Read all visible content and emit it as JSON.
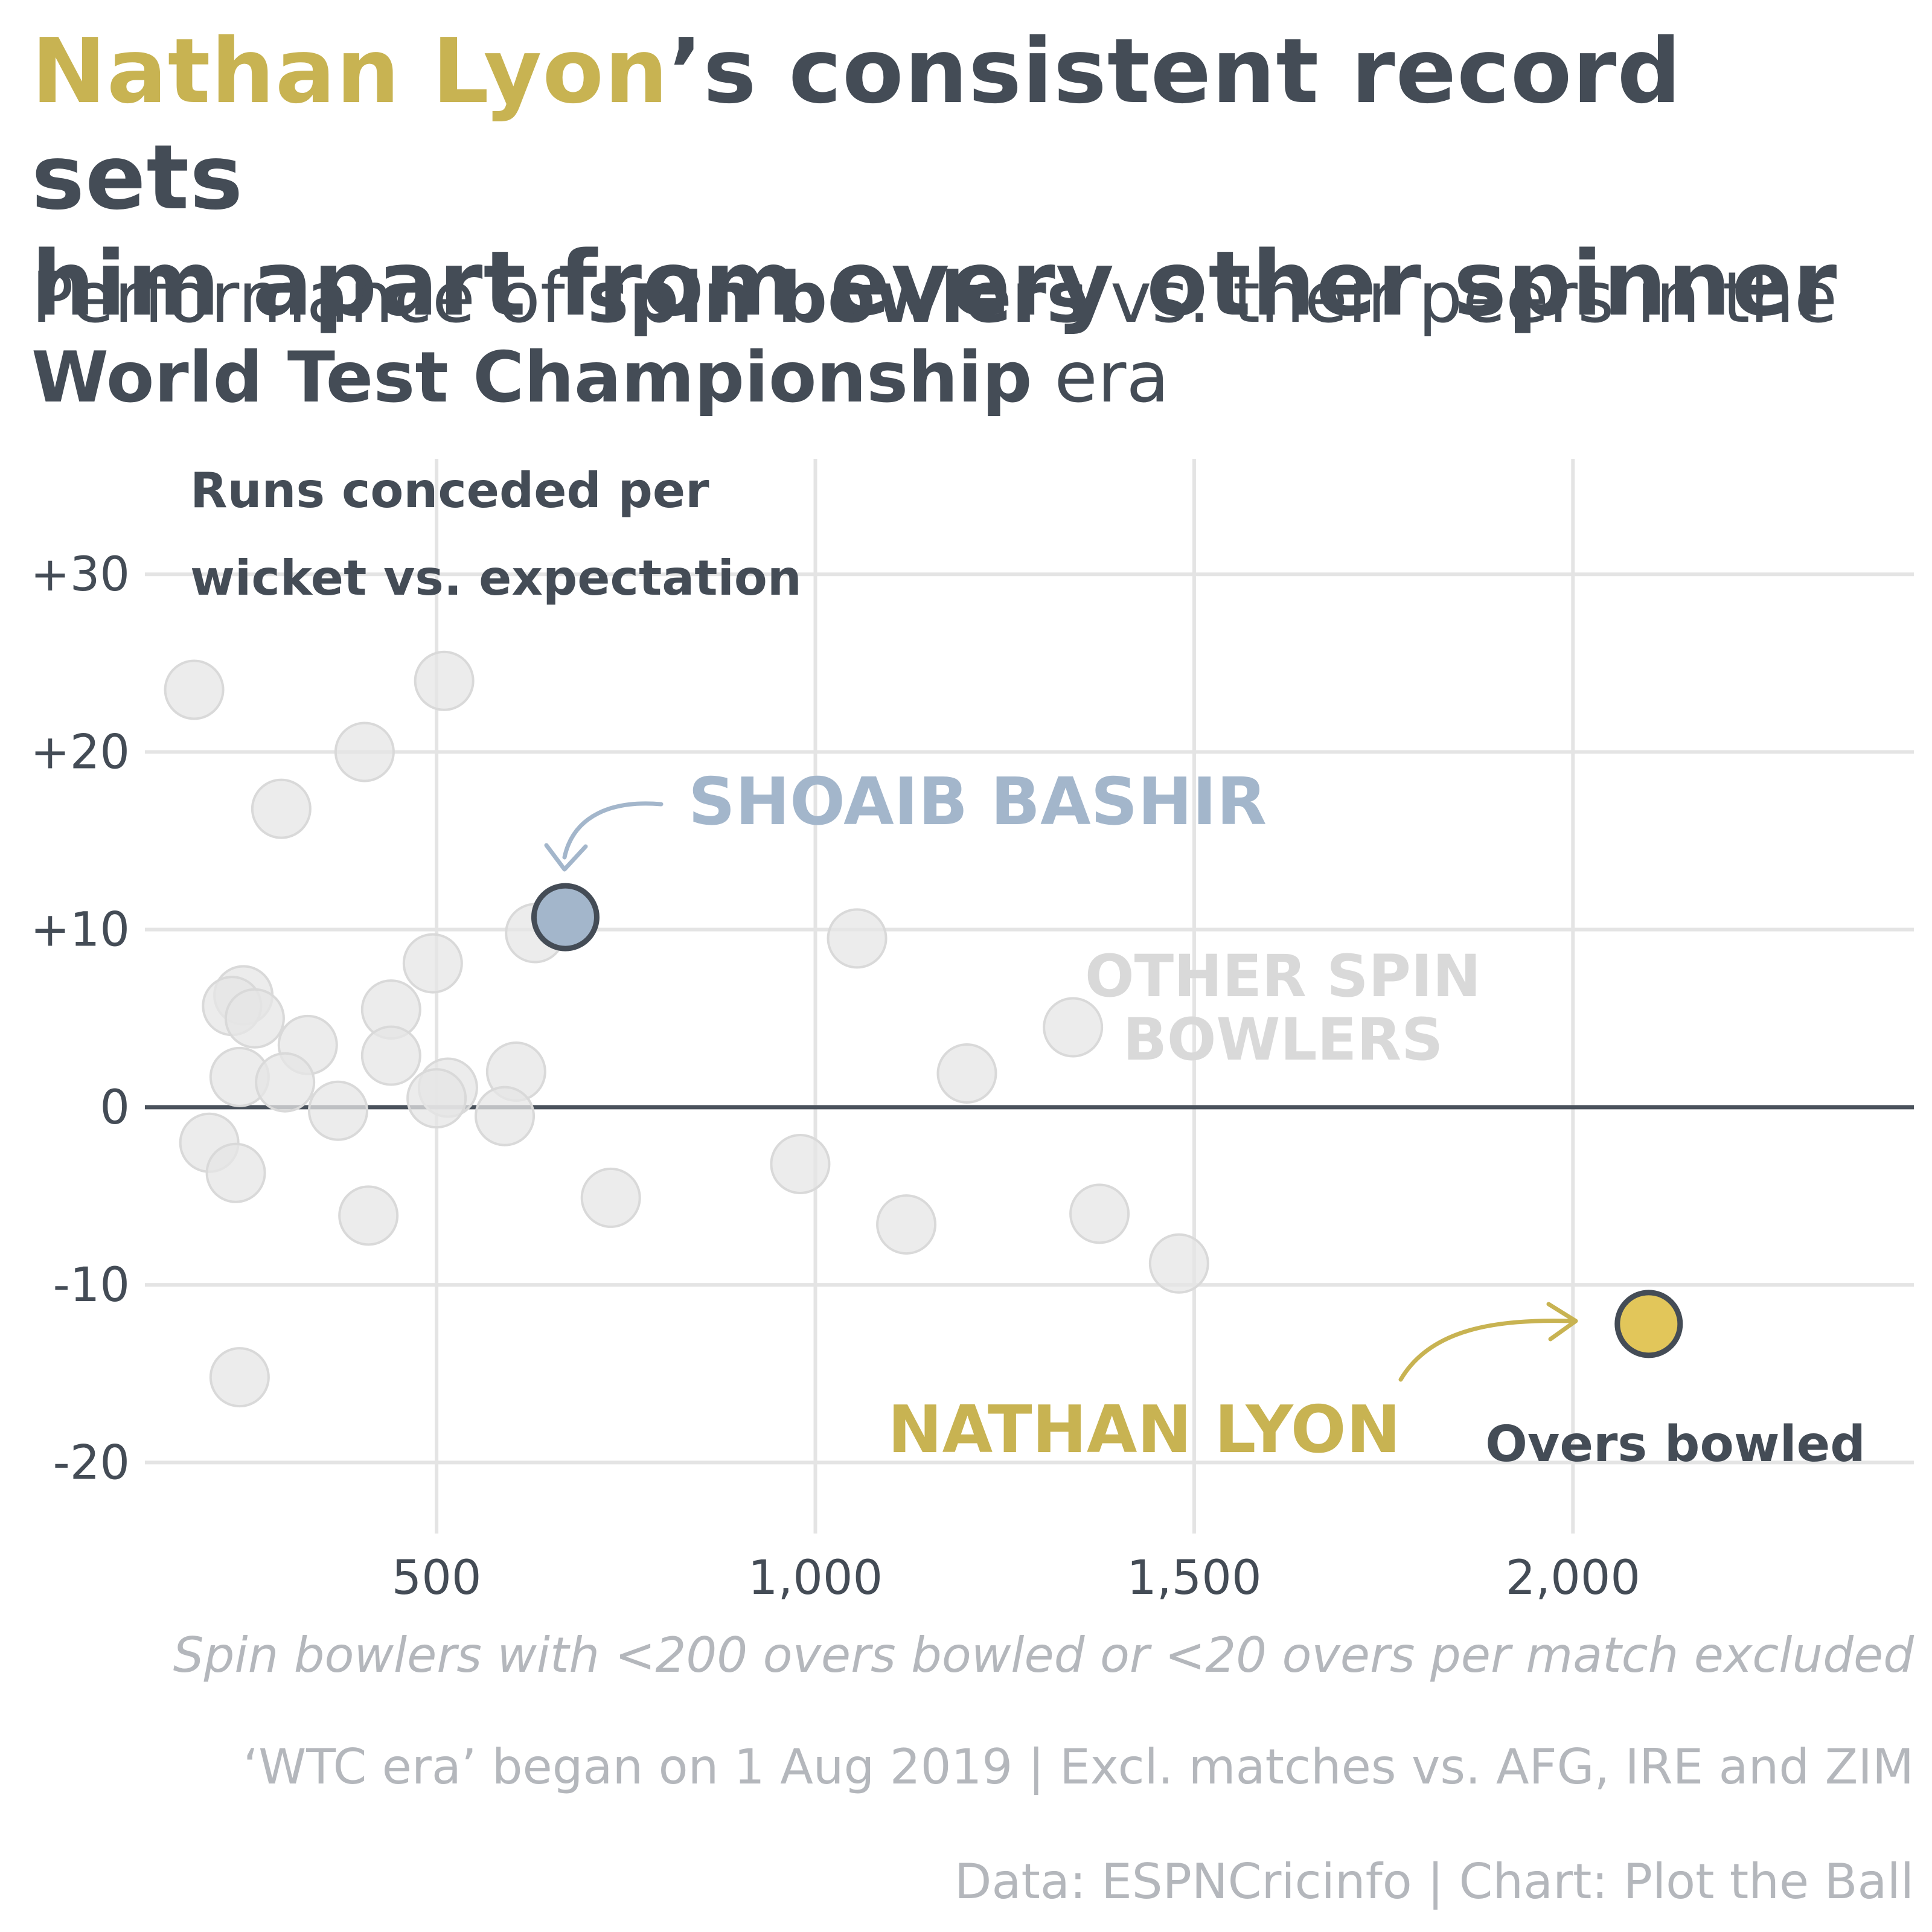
{
  "title": {
    "highlight": "Nathan Lyon",
    "rest_line1": "’s consistent record sets",
    "rest_line2": "him apart from every other spinner"
  },
  "subtitle": {
    "part1": "Performance of ",
    "bold1": "spin bowlers",
    "part2": " vs. their peers in the",
    "bold2": "World Test Championship",
    "part3": " era"
  },
  "colors": {
    "lyon": "#e2c65a",
    "lyon_text": "#c8b352",
    "bashir": "#a3b6cb",
    "bashir_text": "#a3b6cb",
    "others": "#e6e6e6",
    "dark": "#444c56",
    "caption": "#b4b7bc"
  },
  "chart_data": {
    "type": "scatter",
    "ylabel_line1": "Runs conceded per",
    "ylabel_line2": "wicket vs. expectation",
    "xlabel": "Overs bowled",
    "xlim": [
      115,
      2450
    ],
    "ylim": [
      -24,
      36.5
    ],
    "x_ticks": [
      500,
      1000,
      1500,
      2000
    ],
    "x_tick_labels": [
      "500",
      "1,000",
      "1,500",
      "2,000"
    ],
    "y_ticks": [
      -20,
      -10,
      0,
      10,
      20,
      30
    ],
    "y_tick_labels": [
      "-20",
      "-10",
      "0",
      "+10",
      "+20",
      "+30"
    ],
    "grid": true,
    "group_label_line1": "OTHER SPIN",
    "group_label_line2": "BOWLERS",
    "others": [
      {
        "x": 180,
        "y": 23.5
      },
      {
        "x": 510,
        "y": 24.0
      },
      {
        "x": 405,
        "y": 20.0
      },
      {
        "x": 295,
        "y": 16.8
      },
      {
        "x": 630,
        "y": 9.8
      },
      {
        "x": 1055,
        "y": 9.5
      },
      {
        "x": 495,
        "y": 8.1
      },
      {
        "x": 245,
        "y": 6.3
      },
      {
        "x": 230,
        "y": 5.7
      },
      {
        "x": 260,
        "y": 5.0
      },
      {
        "x": 440,
        "y": 5.5
      },
      {
        "x": 1340,
        "y": 4.5
      },
      {
        "x": 330,
        "y": 3.5
      },
      {
        "x": 440,
        "y": 2.9
      },
      {
        "x": 605,
        "y": 2.0
      },
      {
        "x": 1200,
        "y": 1.9
      },
      {
        "x": 240,
        "y": 1.7
      },
      {
        "x": 300,
        "y": 1.4
      },
      {
        "x": 515,
        "y": 1.1
      },
      {
        "x": 500,
        "y": 0.5
      },
      {
        "x": 370,
        "y": -0.2
      },
      {
        "x": 590,
        "y": -0.5
      },
      {
        "x": 200,
        "y": -2.0
      },
      {
        "x": 980,
        "y": -3.2
      },
      {
        "x": 235,
        "y": -3.7
      },
      {
        "x": 730,
        "y": -5.1
      },
      {
        "x": 410,
        "y": -6.1
      },
      {
        "x": 1375,
        "y": -6.0
      },
      {
        "x": 1120,
        "y": -6.6
      },
      {
        "x": 1480,
        "y": -8.8
      },
      {
        "x": 240,
        "y": -15.2
      }
    ],
    "highlights": [
      {
        "name": "SHOAIB BASHIR",
        "x": 670,
        "y": 10.7
      },
      {
        "name": "NATHAN LYON",
        "x": 2100,
        "y": -12.2
      }
    ]
  },
  "footer": {
    "note": "Spin bowlers with <200 overs bowled or <20 overs per match excluded",
    "era": "‘WTC era’ began on 1 Aug 2019 | Excl. matches vs. AFG, IRE and ZIM",
    "source": "Data: ESPNCricinfo | Chart: Plot the Ball"
  }
}
